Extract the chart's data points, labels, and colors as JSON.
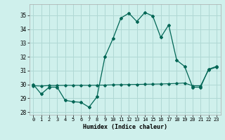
{
  "title": "",
  "xlabel": "Humidex (Indice chaleur)",
  "bg_color": "#cff0ec",
  "grid_color": "#b0d8d4",
  "line_color": "#006655",
  "xlim": [
    -0.5,
    23.5
  ],
  "ylim": [
    27.8,
    35.8
  ],
  "yticks": [
    28,
    29,
    30,
    31,
    32,
    33,
    34,
    35
  ],
  "xticks": [
    0,
    1,
    2,
    3,
    4,
    5,
    6,
    7,
    8,
    9,
    10,
    11,
    12,
    13,
    14,
    15,
    16,
    17,
    18,
    19,
    20,
    21,
    22,
    23
  ],
  "humidex_curve": [
    30.0,
    29.3,
    29.8,
    29.8,
    28.85,
    28.75,
    28.7,
    28.35,
    29.1,
    32.0,
    33.3,
    34.8,
    35.15,
    34.55,
    35.2,
    34.95,
    33.4,
    34.3,
    31.75,
    31.3,
    29.8,
    29.8,
    31.1,
    31.3
  ],
  "trend_curve": [
    29.9,
    29.88,
    29.92,
    29.92,
    29.93,
    29.93,
    29.93,
    29.93,
    29.94,
    29.95,
    29.97,
    29.98,
    29.99,
    30.0,
    30.01,
    30.02,
    30.03,
    30.05,
    30.07,
    30.1,
    29.9,
    29.9,
    31.05,
    31.25
  ]
}
